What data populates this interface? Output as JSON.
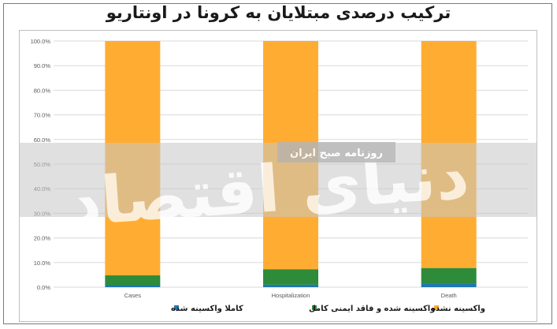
{
  "title": "ترکیب درصدی مبتلایان به کرونا در اونتاریو",
  "watermark": {
    "brand": "دنیای اقتصاد",
    "tagline": "روزنامه صبح ایران"
  },
  "colors": {
    "fully_vaccinated": "#1f77b4",
    "partially_vaccinated": "#2e8b3a",
    "unvaccinated": "#ffad32"
  },
  "chart_data": {
    "type": "bar",
    "stacked": true,
    "title": "ترکیب درصدی مبتلایان به کرونا در اونتاریو",
    "categories": [
      "Cases",
      "Hospitalization",
      "Death"
    ],
    "series": [
      {
        "name": "کاملا واکسینه شده",
        "values": [
          0.8,
          1.0,
          1.3
        ]
      },
      {
        "name": "واکسینه شده و فاقد ایمنی کامل",
        "values": [
          4.0,
          6.3,
          6.5
        ]
      },
      {
        "name": "واکسینه نشده",
        "values": [
          95.2,
          92.7,
          92.2
        ]
      }
    ],
    "ylim": [
      0,
      100
    ],
    "yticks": [
      "0.0%",
      "10.0%",
      "20.0%",
      "30.0%",
      "40.0%",
      "50.0%",
      "60.0%",
      "70.0%",
      "80.0%",
      "90.0%",
      "100.0%"
    ],
    "grid": true,
    "legend_position": "bottom"
  }
}
